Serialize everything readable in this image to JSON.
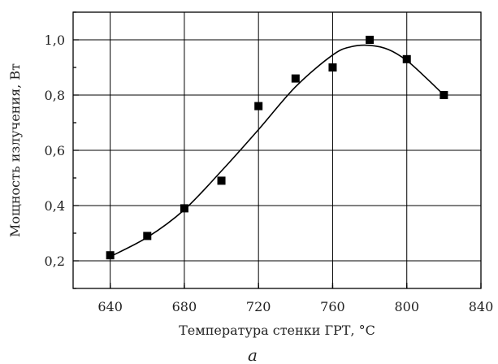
{
  "chart_data": {
    "type": "scatter",
    "title": "",
    "xlabel": "Температура стенки ГРТ, °С",
    "ylabel": "Мощность излучения, Вт",
    "panel_label": "а",
    "xlim": [
      620,
      840
    ],
    "ylim": [
      0.1,
      1.1
    ],
    "x_ticks": [
      640,
      680,
      720,
      760,
      800,
      840
    ],
    "x_tick_labels": [
      "640",
      "680",
      "720",
      "760",
      "800",
      "840"
    ],
    "y_ticks": [
      0.2,
      0.4,
      0.6,
      0.8,
      1.0
    ],
    "y_tick_labels": [
      "0,2",
      "0,4",
      "0,6",
      "0,8",
      "1,0"
    ],
    "x_grid": [
      640,
      680,
      720,
      760,
      800
    ],
    "y_grid": [
      0.2,
      0.4,
      0.6,
      0.8,
      1.0
    ],
    "grid": true,
    "series": [
      {
        "marker": "square",
        "points": [
          {
            "x": 640,
            "y": 0.22
          },
          {
            "x": 660,
            "y": 0.29
          },
          {
            "x": 680,
            "y": 0.39
          },
          {
            "x": 700,
            "y": 0.49
          },
          {
            "x": 720,
            "y": 0.76
          },
          {
            "x": 740,
            "y": 0.86
          },
          {
            "x": 760,
            "y": 0.9
          },
          {
            "x": 780,
            "y": 1.0
          },
          {
            "x": 800,
            "y": 0.93
          },
          {
            "x": 820,
            "y": 0.8
          }
        ]
      },
      {
        "style": "fit-curve",
        "points": [
          {
            "x": 640,
            "y": 0.215
          },
          {
            "x": 660,
            "y": 0.285
          },
          {
            "x": 680,
            "y": 0.385
          },
          {
            "x": 700,
            "y": 0.525
          },
          {
            "x": 720,
            "y": 0.675
          },
          {
            "x": 740,
            "y": 0.83
          },
          {
            "x": 760,
            "y": 0.945
          },
          {
            "x": 770,
            "y": 0.975
          },
          {
            "x": 780,
            "y": 0.98
          },
          {
            "x": 790,
            "y": 0.965
          },
          {
            "x": 800,
            "y": 0.925
          },
          {
            "x": 810,
            "y": 0.865
          },
          {
            "x": 820,
            "y": 0.8
          }
        ]
      }
    ]
  }
}
